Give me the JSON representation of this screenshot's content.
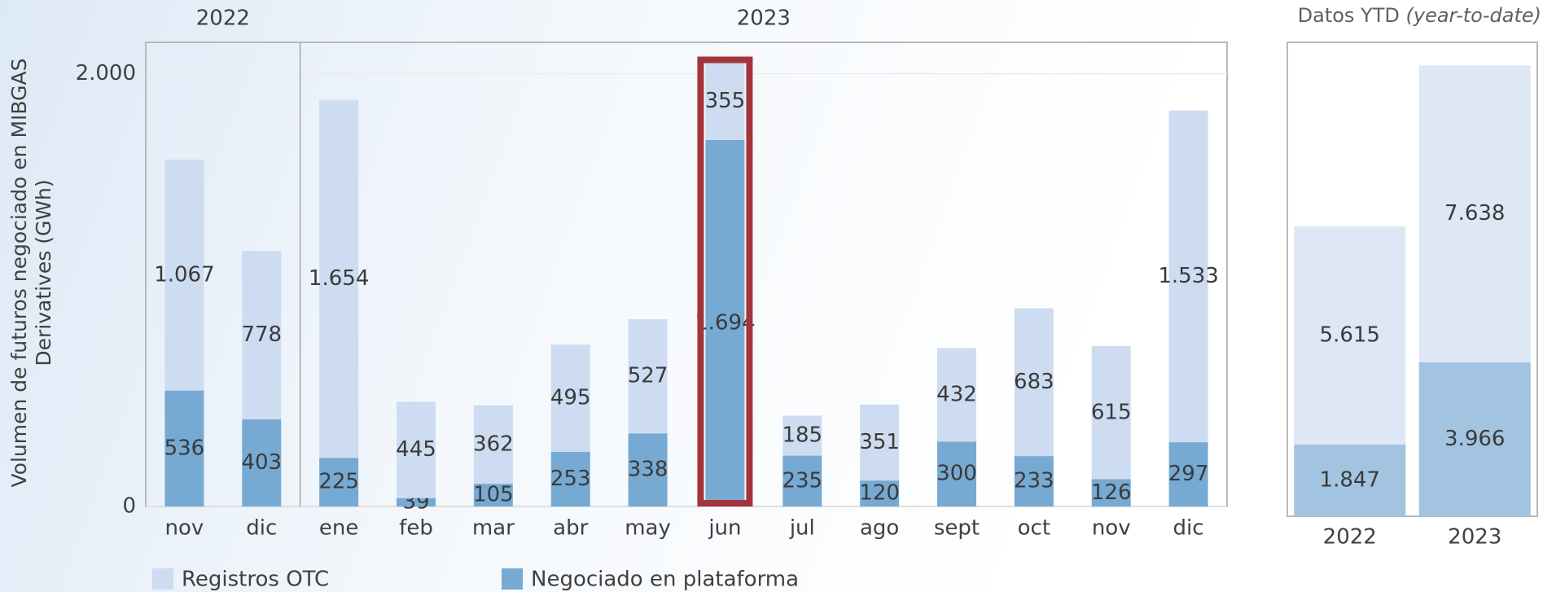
{
  "chart_data": [
    {
      "type": "stacked-bar",
      "y_label": "Volumen de futuros negociado en MIBGAS Derivatives (GWh)",
      "groups": [
        "2022",
        "2023"
      ],
      "categories": [
        "nov",
        "dic",
        "ene",
        "feb",
        "mar",
        "abr",
        "may",
        "jun",
        "jul",
        "ago",
        "sept",
        "oct",
        "nov",
        "dic"
      ],
      "series": [
        {
          "name": "Negociado en plataforma",
          "color": "#76aad3",
          "values": [
            536,
            403,
            225,
            39,
            105,
            253,
            338,
            1694,
            235,
            120,
            300,
            233,
            126,
            297
          ],
          "value_labels": [
            "536",
            "403",
            "225",
            "39",
            "105",
            "253",
            "338",
            "1.694",
            "235",
            "120",
            "300",
            "233",
            "126",
            "297"
          ]
        },
        {
          "name": "Registros OTC",
          "color": "#cddcf0",
          "values": [
            1067,
            778,
            1654,
            445,
            362,
            495,
            527,
            355,
            185,
            351,
            432,
            683,
            615,
            1533
          ],
          "value_labels": [
            "1.067",
            "778",
            "1.654",
            "445",
            "362",
            "495",
            "527",
            "355",
            "185",
            "351",
            "432",
            "683",
            "615",
            "1.533"
          ]
        }
      ],
      "ylim": [
        0,
        2145
      ],
      "yticks": [
        0,
        {
          "value": 2000,
          "label": "2.000"
        }
      ],
      "grid": true
    },
    {
      "type": "stacked-bar",
      "title": "Datos YTD",
      "subtitle": "(year-to-date)",
      "categories": [
        "2022",
        "2023"
      ],
      "series": [
        {
          "name": "Negociado en plataforma",
          "color": "#a3c4e0",
          "values": [
            1847,
            3966
          ],
          "value_labels": [
            "1.847",
            "3.966"
          ]
        },
        {
          "name": "Registros OTC",
          "color": "#dde7f5",
          "values": [
            5615,
            7638
          ],
          "value_labels": [
            "5.615",
            "7.638"
          ]
        }
      ],
      "ylim": [
        0,
        12200
      ]
    }
  ]
}
